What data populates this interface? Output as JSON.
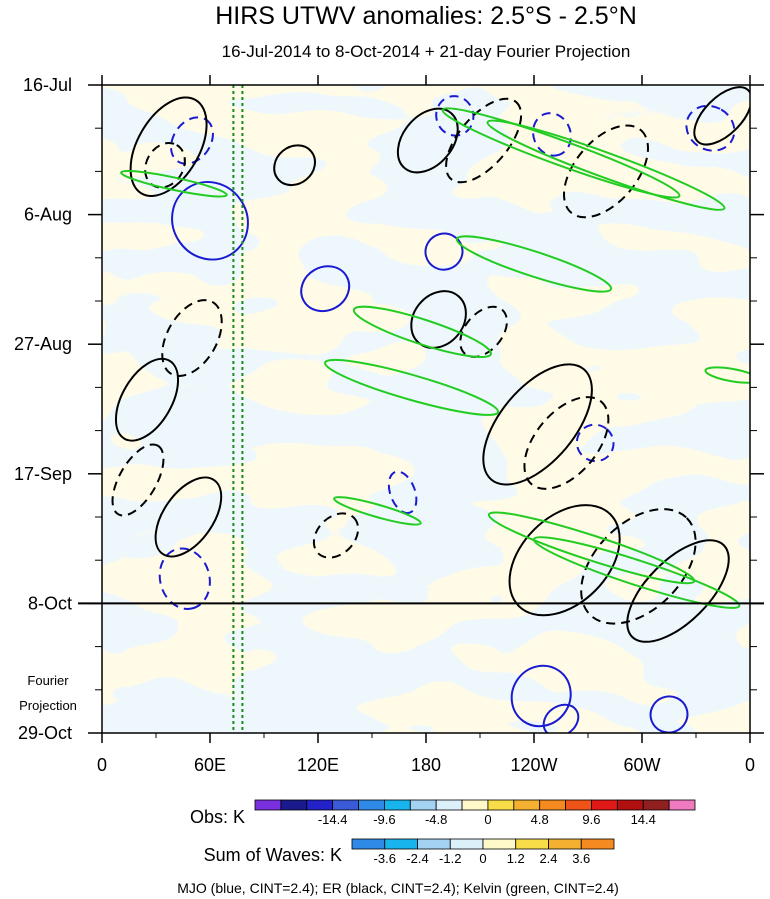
{
  "chart_data": {
    "type": "heatmap",
    "title": "HIRS UTWV anomalies: 2.5°S - 2.5°N",
    "subtitle": "16-Jul-2014 to 8-Oct-2014 + 21-day Fourier Projection",
    "x_ticks": [
      "0",
      "60E",
      "120E",
      "180",
      "120W",
      "60W",
      "0"
    ],
    "x_range": [
      0,
      360
    ],
    "y_ticks": [
      "16-Jul",
      "6-Aug",
      "27-Aug",
      "17-Sep",
      "8-Oct",
      "29-Oct"
    ],
    "y_range_days": [
      0,
      105
    ],
    "y_tick_days": [
      0,
      21,
      42,
      63,
      84,
      105
    ],
    "observation_end_day": 84,
    "fourier_label": [
      "Fourier",
      "Projection"
    ],
    "obs_colorbar": {
      "title": "Obs: K",
      "labels": [
        "-14.4",
        "-9.6",
        "-4.8",
        "0",
        "4.8",
        "9.6",
        "14.4"
      ],
      "colors": [
        "#7b30e0",
        "#1a1a8c",
        "#2222c8",
        "#3a5ad8",
        "#2e8ae6",
        "#18b4ee",
        "#a4d2f2",
        "#dcf0fa",
        "#fff8c8",
        "#f8dc48",
        "#f4b030",
        "#f48a20",
        "#ee5418",
        "#e01818",
        "#b01010",
        "#902020",
        "#f07ac0"
      ]
    },
    "waves_colorbar": {
      "title": "Sum of Waves: K",
      "labels": [
        "-3.6",
        "-2.4",
        "-1.2",
        "0",
        "1.2",
        "2.4",
        "3.6"
      ],
      "colors": [
        "#2e8ae6",
        "#18b4ee",
        "#a4d2f2",
        "#dcf0fa",
        "#fff8c8",
        "#f8dc48",
        "#f4b030",
        "#f48a20"
      ]
    },
    "footer": "MJO (blue, CINT=2.4); ER (black, CINT=2.4); Kelvin (green, CINT=2.4)",
    "reference_lines_lon": [
      73,
      78
    ],
    "contours": {
      "mjo": [
        {
          "lon": 50,
          "day": 9,
          "rx": 14,
          "ry": 3,
          "rot": -55,
          "dash": true
        },
        {
          "lon": 60,
          "day": 22,
          "rx": 22,
          "ry": 6,
          "rot": 55,
          "dash": false
        },
        {
          "lon": 124,
          "day": 33,
          "rx": 12,
          "ry": 4,
          "rot": 60,
          "dash": false
        },
        {
          "lon": 190,
          "day": 27,
          "rx": 10,
          "ry": 3,
          "rot": 75,
          "dash": false
        },
        {
          "lon": 196,
          "day": 5,
          "rx": 11,
          "ry": 3,
          "rot": 75,
          "dash": true
        },
        {
          "lon": 250,
          "day": 8,
          "rx": 12,
          "ry": 3,
          "rot": 70,
          "dash": true
        },
        {
          "lon": 338,
          "day": 7,
          "rx": 12,
          "ry": 4,
          "rot": -60,
          "dash": true
        },
        {
          "lon": 167,
          "day": 66,
          "rx": 12,
          "ry": 2,
          "rot": 70,
          "dash": true
        },
        {
          "lon": 46,
          "day": 80,
          "rx": 17,
          "ry": 4,
          "rot": 75,
          "dash": true
        },
        {
          "lon": 244,
          "day": 99,
          "rx": 16,
          "ry": 5,
          "rot": 35,
          "dash": false
        },
        {
          "lon": 255,
          "day": 103,
          "rx": 8,
          "ry": 3,
          "rot": 55,
          "dash": false
        },
        {
          "lon": 274,
          "day": 58,
          "rx": 10,
          "ry": 3,
          "rot": -50,
          "dash": true
        },
        {
          "lon": 315,
          "day": 102,
          "rx": 10,
          "ry": 3,
          "rot": 70,
          "dash": false
        }
      ],
      "er": [
        {
          "lon": 37,
          "day": 10,
          "rx": 30,
          "ry": 5,
          "rot": -60,
          "dash": false
        },
        {
          "lon": 35,
          "day": 13,
          "rx": 13,
          "ry": 3,
          "rot": -60,
          "dash": true
        },
        {
          "lon": 107,
          "day": 13,
          "rx": 12,
          "ry": 3,
          "rot": -40,
          "dash": false
        },
        {
          "lon": 181,
          "day": 9,
          "rx": 20,
          "ry": 4,
          "rot": -50,
          "dash": false
        },
        {
          "lon": 212,
          "day": 9,
          "rx": 28,
          "ry": 4,
          "rot": -50,
          "dash": true
        },
        {
          "lon": 280,
          "day": 14,
          "rx": 30,
          "ry": 5,
          "rot": -50,
          "dash": true
        },
        {
          "lon": 25,
          "day": 51,
          "rx": 25,
          "ry": 4,
          "rot": -60,
          "dash": false
        },
        {
          "lon": 50,
          "day": 41,
          "rx": 23,
          "ry": 4,
          "rot": -60,
          "dash": true
        },
        {
          "lon": 187,
          "day": 38,
          "rx": 17,
          "ry": 4,
          "rot": -50,
          "dash": false
        },
        {
          "lon": 212,
          "day": 40,
          "rx": 16,
          "ry": 3,
          "rot": -50,
          "dash": true
        },
        {
          "lon": 242,
          "day": 55,
          "rx": 40,
          "ry": 6,
          "rot": -50,
          "dash": false
        },
        {
          "lon": 258,
          "day": 58,
          "rx": 30,
          "ry": 5,
          "rot": -50,
          "dash": true
        },
        {
          "lon": 20,
          "day": 64,
          "rx": 22,
          "ry": 3,
          "rot": -60,
          "dash": true
        },
        {
          "lon": 48,
          "day": 70,
          "rx": 25,
          "ry": 4,
          "rot": -55,
          "dash": false
        },
        {
          "lon": 130,
          "day": 73,
          "rx": 14,
          "ry": 3,
          "rot": -45,
          "dash": true
        },
        {
          "lon": 257,
          "day": 77,
          "rx": 36,
          "ry": 7,
          "rot": -45,
          "dash": false
        },
        {
          "lon": 298,
          "day": 78,
          "rx": 38,
          "ry": 7,
          "rot": -45,
          "dash": true
        },
        {
          "lon": 320,
          "day": 82,
          "rx": 36,
          "ry": 5,
          "rot": -45,
          "dash": false
        },
        {
          "lon": 345,
          "day": 5,
          "rx": 20,
          "ry": 3,
          "rot": -45,
          "dash": false
        }
      ],
      "kelvin": [
        {
          "lon": 255,
          "day": 11,
          "rx": 70,
          "ry": 2,
          "rot": 20
        },
        {
          "lon": 280,
          "day": 13,
          "rx": 70,
          "ry": 2,
          "rot": 20
        },
        {
          "lon": 40,
          "day": 16,
          "rx": 30,
          "ry": 1,
          "rot": 12
        },
        {
          "lon": 240,
          "day": 29,
          "rx": 45,
          "ry": 2,
          "rot": 18
        },
        {
          "lon": 178,
          "day": 40,
          "rx": 40,
          "ry": 2,
          "rot": 18
        },
        {
          "lon": 172,
          "day": 49,
          "rx": 50,
          "ry": 2,
          "rot": 16
        },
        {
          "lon": 153,
          "day": 69,
          "rx": 25,
          "ry": 1,
          "rot": 16
        },
        {
          "lon": 272,
          "day": 75,
          "rx": 60,
          "ry": 2,
          "rot": 18
        },
        {
          "lon": 297,
          "day": 79,
          "rx": 60,
          "ry": 2,
          "rot": 18
        },
        {
          "lon": 350,
          "day": 47,
          "rx": 15,
          "ry": 1,
          "rot": 10
        }
      ]
    }
  }
}
